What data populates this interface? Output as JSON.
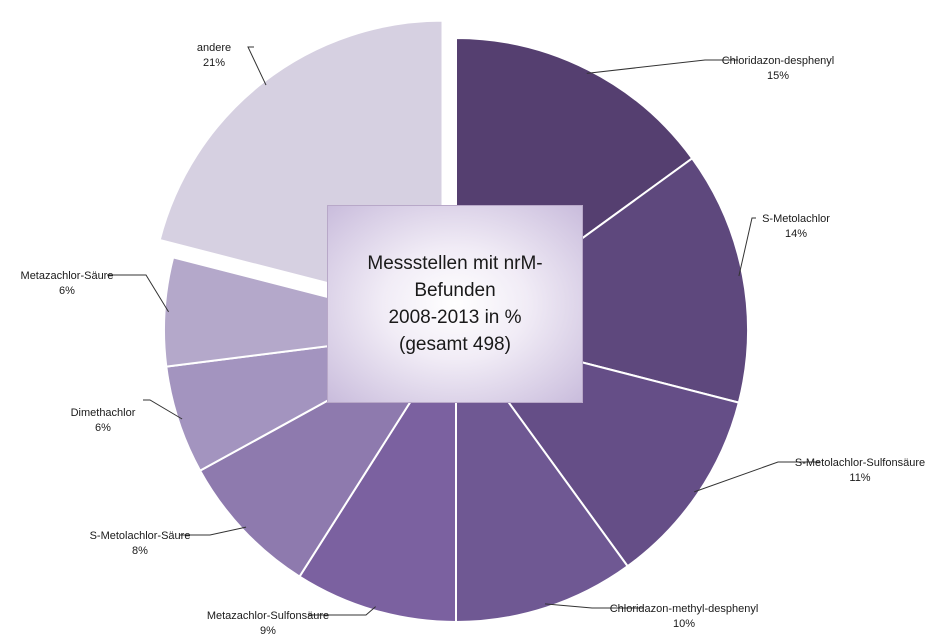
{
  "chart_data": {
    "type": "pie",
    "title_lines": [
      "Messstellen mit nrM-",
      "Befunden",
      "2008-2013 in %",
      "(gesamt 498)"
    ],
    "slices": [
      {
        "label": "Chloridazon-desphenyl",
        "value": 15,
        "value_text": "15%",
        "color": "#553f70"
      },
      {
        "label": "S-Metolachlor",
        "value": 14,
        "value_text": "14%",
        "color": "#5e487d"
      },
      {
        "label": "S-Metolachlor-Sulfonsäure",
        "value": 11,
        "value_text": "11%",
        "color": "#654e87"
      },
      {
        "label": "Chloridazon-methyl-desphenyl",
        "value": 10,
        "value_text": "10%",
        "color": "#6f5893"
      },
      {
        "label": "Metazachlor-Sulfonsäure",
        "value": 9,
        "value_text": "9%",
        "color": "#7b61a0"
      },
      {
        "label": "S-Metolachlor-Säure",
        "value": 8,
        "value_text": "8%",
        "color": "#8e7aae"
      },
      {
        "label": "Dimethachlor",
        "value": 6,
        "value_text": "6%",
        "color": "#a394bf"
      },
      {
        "label": "Metazachlor-Säure",
        "value": 6,
        "value_text": "6%",
        "color": "#b4a8ca"
      },
      {
        "label": "andere",
        "value": 21,
        "value_text": "21%",
        "color": "#d6d0e1",
        "exploded": true
      }
    ],
    "start_angle": "12 o'clock",
    "direction": "clockwise",
    "legend": "none",
    "data_labels": "outside with leader lines"
  }
}
